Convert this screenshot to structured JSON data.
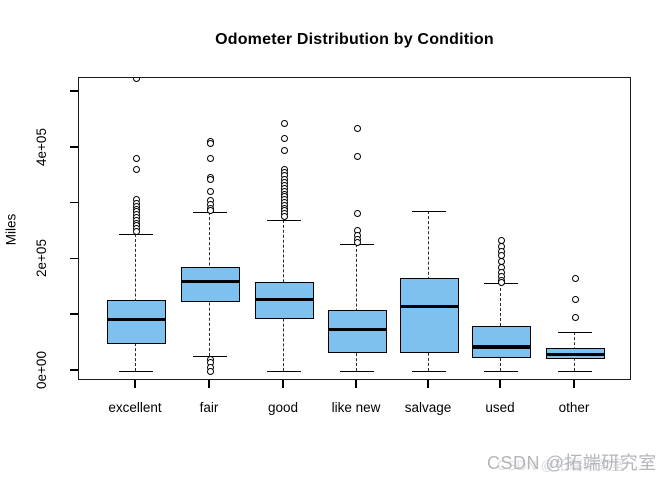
{
  "title": "Odometer Distribution by Condition",
  "watermark": {
    "text": "CSDN @拓端研究室",
    "color": "#b4b6b9"
  },
  "chart_data": {
    "type": "boxplot",
    "title": "Odometer Distribution by Condition",
    "xlabel": "",
    "ylabel": "Miles",
    "ylim": [
      0,
      520000
    ],
    "grid": false,
    "y_tick_step": 100000,
    "y_tick_values": [
      0,
      100000,
      200000,
      300000,
      400000,
      500000
    ],
    "y_labeled_ticks": [
      {
        "value": 0,
        "label": "0e+00"
      },
      {
        "value": 200000,
        "label": "2e+05"
      },
      {
        "value": 400000,
        "label": "4e+05"
      }
    ],
    "box_fill_color": "#7EC0EE",
    "box_border_color": "#000000",
    "categories": [
      "excellent",
      "fair",
      "good",
      "like new",
      "salvage",
      "used",
      "other"
    ],
    "boxes": [
      {
        "label": "excellent",
        "whisker_low": 0,
        "q1": 48000,
        "median": 93000,
        "q3": 127000,
        "whisker_high": 245000,
        "outliers": [
          525000,
          380000,
          362000,
          308000,
          301000,
          295000,
          290000,
          285000,
          280000,
          275000,
          270000,
          265000,
          260000,
          255000,
          250000
        ]
      },
      {
        "label": "fair",
        "whisker_low": 27000,
        "q1": 124000,
        "median": 160000,
        "q3": 186000,
        "whisker_high": 285000,
        "outliers": [
          412000,
          407000,
          381000,
          347000,
          343000,
          322000,
          306000,
          299000,
          292000,
          288000,
          20000,
          16000,
          6000,
          0
        ]
      },
      {
        "label": "good",
        "whisker_low": 0,
        "q1": 93000,
        "median": 128000,
        "q3": 160000,
        "whisker_high": 270000,
        "outliers": [
          443000,
          416000,
          396000,
          362000,
          356000,
          350000,
          344000,
          338000,
          332000,
          327000,
          322000,
          317000,
          312000,
          307000,
          302000,
          297000,
          292000,
          287000,
          282000,
          277000
        ]
      },
      {
        "label": "like new",
        "whisker_low": 0,
        "q1": 33000,
        "median": 75000,
        "q3": 109000,
        "whisker_high": 227000,
        "outliers": [
          434000,
          385000,
          283000,
          251000,
          243000,
          236000,
          230000
        ]
      },
      {
        "label": "salvage",
        "whisker_low": 0,
        "q1": 33000,
        "median": 116000,
        "q3": 167000,
        "whisker_high": 287000,
        "outliers": []
      },
      {
        "label": "used",
        "whisker_low": 0,
        "q1": 24000,
        "median": 43000,
        "q3": 80000,
        "whisker_high": 158000,
        "outliers": [
          233000,
          224000,
          215000,
          207000,
          196000,
          186000,
          177000,
          170000,
          163000,
          159000
        ]
      },
      {
        "label": "other",
        "whisker_low": 0,
        "q1": 21000,
        "median": 30000,
        "q3": 42000,
        "whisker_high": 69000,
        "outliers": [
          165000,
          129000,
          95000
        ]
      }
    ]
  }
}
